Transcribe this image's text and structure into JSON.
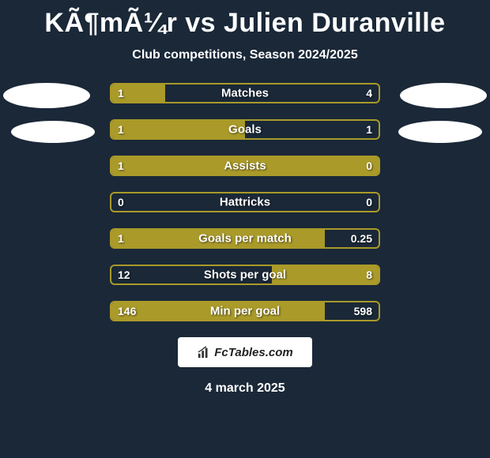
{
  "title": "KÃ¶mÃ¼r vs Julien Duranville",
  "subtitle": "Club competitions, Season 2024/2025",
  "date": "4 march 2025",
  "watermark_text": "FcTables.com",
  "colors": {
    "background": "#1a2838",
    "bar_border": "#aa9a29",
    "bar_fill": "#aa9a29",
    "text": "#ffffff",
    "oval": "#ffffff"
  },
  "stats": [
    {
      "label": "Matches",
      "left_val": "1",
      "right_val": "4",
      "left_pct": 20,
      "right_pct": 0
    },
    {
      "label": "Goals",
      "left_val": "1",
      "right_val": "1",
      "left_pct": 50,
      "right_pct": 0
    },
    {
      "label": "Assists",
      "left_val": "1",
      "right_val": "0",
      "left_pct": 78,
      "right_pct": 22
    },
    {
      "label": "Hattricks",
      "left_val": "0",
      "right_val": "0",
      "left_pct": 0,
      "right_pct": 0
    },
    {
      "label": "Goals per match",
      "left_val": "1",
      "right_val": "0.25",
      "left_pct": 80,
      "right_pct": 0
    },
    {
      "label": "Shots per goal",
      "left_val": "12",
      "right_val": "8",
      "left_pct": 0,
      "right_pct": 40
    },
    {
      "label": "Min per goal",
      "left_val": "146",
      "right_val": "598",
      "left_pct": 80,
      "right_pct": 0
    }
  ]
}
